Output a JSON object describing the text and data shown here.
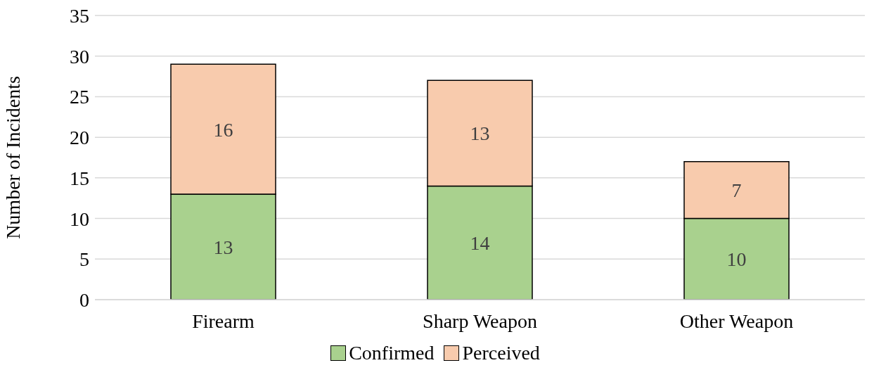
{
  "chart_data": {
    "type": "bar",
    "stacked": true,
    "ylabel": "Number of Incidents",
    "categories": [
      "Firearm",
      "Sharp Weapon",
      "Other Weapon"
    ],
    "series": [
      {
        "name": "Confirmed",
        "color": "#a9d18e",
        "values": [
          13,
          14,
          10
        ]
      },
      {
        "name": "Perceived",
        "color": "#f8cbad",
        "values": [
          16,
          13,
          7
        ]
      }
    ],
    "ylim": [
      0,
      35
    ],
    "yticks": [
      0,
      5,
      10,
      15,
      20,
      25,
      30,
      35
    ],
    "grid": "y",
    "legend": "bottom",
    "data_labels": true
  }
}
